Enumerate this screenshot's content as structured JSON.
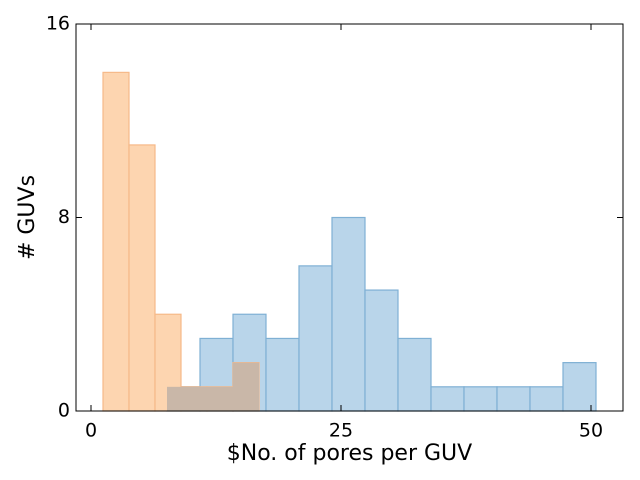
{
  "chart_data": {
    "type": "bar",
    "title": "",
    "xlabel": "$No. of pores per GUV",
    "ylabel": "# GUVs",
    "xlim": [
      -1.5,
      53.2
    ],
    "ylim": [
      0,
      16
    ],
    "xticks": [
      0,
      25,
      50
    ],
    "yticks": [
      0,
      8,
      16
    ],
    "grid": false,
    "legend": "none",
    "series": [
      {
        "color": "#b9d5ea",
        "edge_color": "#7fb0d4",
        "bin_edges": [
          7.6,
          10.9,
          14.2,
          17.5,
          20.8,
          24.1,
          27.4,
          30.7,
          34.0,
          37.3,
          40.6,
          43.9,
          47.2,
          50.5
        ],
        "counts": [
          1,
          3,
          4,
          3,
          6,
          8,
          5,
          3,
          1,
          1,
          1,
          1,
          2
        ]
      },
      {
        "color": "#fdd5b0",
        "edge_color": "#f6b989",
        "bin_edges": [
          1.2,
          3.8,
          6.4,
          9.0,
          11.6,
          14.2,
          16.8
        ],
        "counts": [
          14,
          11,
          4,
          1,
          1,
          2
        ]
      }
    ],
    "overlap_color": "#c9b7a8"
  }
}
